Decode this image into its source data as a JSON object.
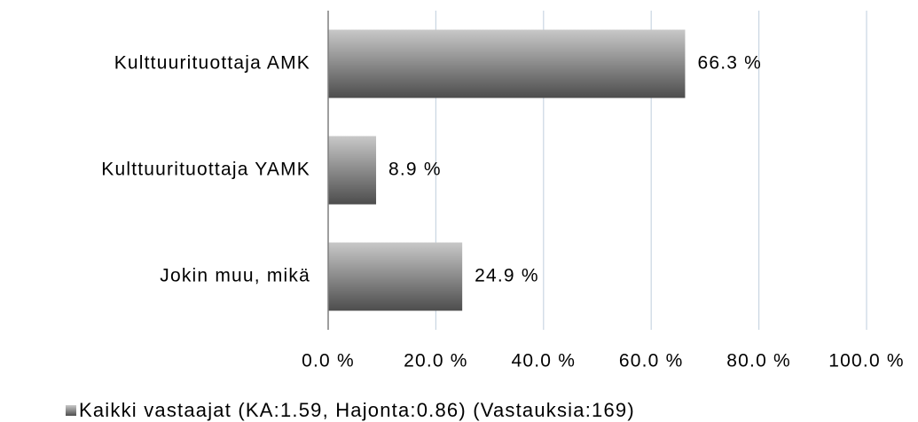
{
  "chart_data": {
    "type": "barh",
    "categories": [
      "Kulttuurituottaja AMK",
      "Kulttuurituottaja YAMK",
      "Jokin muu, mikä"
    ],
    "series": [
      {
        "name": "Kaikki vastaajat (KA:1.59, Hajonta:0.86) (Vastauksia:169)",
        "colors": [
          "#c8c8c8",
          "#4d4d4d"
        ],
        "values": [
          66.3,
          8.9,
          24.9
        ],
        "value_labels": [
          "66.3 %",
          "8.9 %",
          "24.9 %"
        ]
      }
    ],
    "xlim": [
      0,
      100
    ],
    "xticks": [
      {
        "value": 0,
        "label": "0.0 %"
      },
      {
        "value": 20,
        "label": "20.0 %"
      },
      {
        "value": 40,
        "label": "40.0 %"
      },
      {
        "value": 60,
        "label": "60.0 %"
      },
      {
        "value": 80,
        "label": "80.0 %"
      },
      {
        "value": 100,
        "label": "100.0 %"
      }
    ],
    "grid": true,
    "legend": "bottom"
  }
}
